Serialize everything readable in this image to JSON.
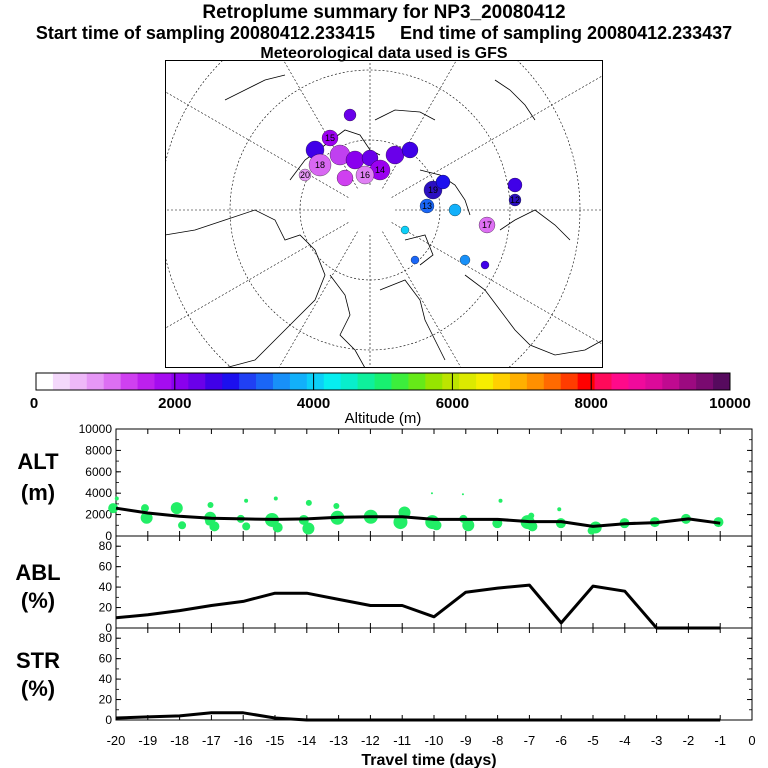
{
  "header": {
    "title": "Retroplume summary for NP3_20080412",
    "start_label": "Start time of sampling 20080412.233415",
    "end_label": "End time of sampling 20080412.233437",
    "met_label": "Meteorological data used is GFS"
  },
  "colorbar": {
    "ticks": [
      "0",
      "2000",
      "4000",
      "6000",
      "8000",
      "10000"
    ],
    "label": "Altitude (m)",
    "colors": [
      "#ffffff",
      "#f4d8fb",
      "#eeb8f8",
      "#e697f6",
      "#dd6ff3",
      "#cf40f0",
      "#bd20ee",
      "#a50cf0",
      "#8a00ee",
      "#6a00ea",
      "#4000e8",
      "#1c10ee",
      "#2040f4",
      "#1a66f6",
      "#1890f8",
      "#12b0fa",
      "#0ccff8",
      "#06eef0",
      "#08eecc",
      "#0ef09c",
      "#18f070",
      "#3cee3c",
      "#66ea18",
      "#96e400",
      "#bce400",
      "#dcea00",
      "#f6ee00",
      "#ffd000",
      "#ffb000",
      "#ff9000",
      "#ff6a00",
      "#ff3c00",
      "#ff0000",
      "#ff0a5a",
      "#ff0a8a",
      "#f00a9c",
      "#dc0a9a",
      "#c00a90",
      "#9c0a80",
      "#7a0a70",
      "#560a5e"
    ]
  },
  "axes": {
    "xlabel": "Travel time (days)",
    "x_ticks": [
      "-20",
      "-19",
      "-18",
      "-17",
      "-16",
      "-15",
      "-14",
      "-13",
      "-12",
      "-11",
      "-10",
      "-9",
      "-8",
      "-7",
      "-6",
      "-5",
      "-4",
      "-3",
      "-2",
      "-1",
      "0"
    ]
  },
  "chart_data": [
    {
      "type": "line",
      "panel_label": "ALT",
      "unit_label": "(m)",
      "ylim": [
        0,
        10000
      ],
      "y_ticks": [
        "0",
        "2000",
        "4000",
        "6000",
        "8000",
        "10000"
      ],
      "x": [
        -20,
        -19,
        -18,
        -17,
        -16,
        -15,
        -14,
        -13,
        -12,
        -11,
        -10,
        -9,
        -8,
        -7,
        -6,
        -5,
        -4,
        -3,
        -2,
        -1
      ],
      "values": [
        2600,
        2150,
        1850,
        1650,
        1600,
        1550,
        1600,
        1750,
        1800,
        1800,
        1550,
        1550,
        1550,
        1350,
        1350,
        900,
        1150,
        1250,
        1600,
        1200
      ],
      "scatter": [
        {
          "x": -20,
          "y": 2600,
          "r": 5
        },
        {
          "x": -20,
          "y": 3500,
          "r": 2
        },
        {
          "x": -19,
          "y": 2600,
          "r": 4
        },
        {
          "x": -19,
          "y": 1700,
          "r": 6
        },
        {
          "x": -18,
          "y": 2600,
          "r": 6
        },
        {
          "x": -18,
          "y": 1000,
          "r": 4
        },
        {
          "x": -17,
          "y": 1700,
          "r": 6
        },
        {
          "x": -17,
          "y": 900,
          "r": 5
        },
        {
          "x": -17,
          "y": 1350,
          "r": 4
        },
        {
          "x": -17,
          "y": 2900,
          "r": 3
        },
        {
          "x": -16,
          "y": 1600,
          "r": 4
        },
        {
          "x": -16,
          "y": 900,
          "r": 4
        },
        {
          "x": -16,
          "y": 3300,
          "r": 2
        },
        {
          "x": -15,
          "y": 1500,
          "r": 7
        },
        {
          "x": -15,
          "y": 800,
          "r": 5
        },
        {
          "x": -15,
          "y": 3500,
          "r": 2
        },
        {
          "x": -14,
          "y": 1500,
          "r": 5
        },
        {
          "x": -14,
          "y": 700,
          "r": 6
        },
        {
          "x": -14,
          "y": 3100,
          "r": 3
        },
        {
          "x": -13,
          "y": 1700,
          "r": 7
        },
        {
          "x": -13,
          "y": 2800,
          "r": 3
        },
        {
          "x": -12,
          "y": 1800,
          "r": 7
        },
        {
          "x": -12,
          "y": 1900,
          "r": 5
        },
        {
          "x": -11,
          "y": 1300,
          "r": 7
        },
        {
          "x": -11,
          "y": 2200,
          "r": 6
        },
        {
          "x": -10,
          "y": 1300,
          "r": 7
        },
        {
          "x": -10,
          "y": 1000,
          "r": 5
        },
        {
          "x": -10,
          "y": 4000,
          "r": 1
        },
        {
          "x": -9,
          "y": 1000,
          "r": 6
        },
        {
          "x": -9,
          "y": 1600,
          "r": 4
        },
        {
          "x": -9,
          "y": 3900,
          "r": 1
        },
        {
          "x": -8,
          "y": 1200,
          "r": 5
        },
        {
          "x": -8,
          "y": 3300,
          "r": 2
        },
        {
          "x": -7,
          "y": 1300,
          "r": 7
        },
        {
          "x": -7,
          "y": 900,
          "r": 5
        },
        {
          "x": -7,
          "y": 1900,
          "r": 3
        },
        {
          "x": -6,
          "y": 1200,
          "r": 5
        },
        {
          "x": -6,
          "y": 2500,
          "r": 2
        },
        {
          "x": -5,
          "y": 800,
          "r": 6
        },
        {
          "x": -5,
          "y": 500,
          "r": 4
        },
        {
          "x": -4,
          "y": 1200,
          "r": 5
        },
        {
          "x": -3,
          "y": 1300,
          "r": 5
        },
        {
          "x": -2,
          "y": 1600,
          "r": 5
        },
        {
          "x": -1,
          "y": 1300,
          "r": 5
        }
      ]
    },
    {
      "type": "line",
      "panel_label": "ABL",
      "unit_label": "(%)",
      "ylim": [
        0,
        90
      ],
      "y_ticks": [
        "0",
        "20",
        "40",
        "60",
        "80"
      ],
      "x": [
        -20,
        -19,
        -18,
        -17,
        -16,
        -15,
        -14,
        -13,
        -12,
        -11,
        -10,
        -9,
        -8,
        -7,
        -6,
        -5,
        -4,
        -3,
        -2,
        -1
      ],
      "values": [
        10,
        13,
        17,
        22,
        26,
        34,
        34,
        28,
        22,
        22,
        11,
        35,
        39,
        42,
        5,
        41,
        36,
        0,
        0,
        0
      ]
    },
    {
      "type": "line",
      "panel_label": "STR",
      "unit_label": "(%)",
      "ylim": [
        0,
        90
      ],
      "y_ticks": [
        "0",
        "20",
        "40",
        "60",
        "80"
      ],
      "x": [
        -20,
        -19,
        -18,
        -17,
        -16,
        -15,
        -14,
        -13,
        -12,
        -11,
        -10,
        -9,
        -8,
        -7,
        -6,
        -5,
        -4,
        -3,
        -2,
        -1
      ],
      "values": [
        2,
        3,
        4,
        7,
        7,
        2,
        0,
        0,
        0,
        0,
        0,
        0,
        0,
        0,
        0,
        0,
        0,
        0,
        0,
        0
      ]
    }
  ],
  "map": {
    "plume_labels": [
      "15",
      "16",
      "17",
      "18",
      "19",
      "12",
      "13",
      "14",
      "20"
    ],
    "plume_colors": [
      "#9b00f0",
      "#8a00ee",
      "#c040f0",
      "#d868f2",
      "#4000e8",
      "#2c10c0",
      "#1a66f6",
      "#6a00ea",
      "#e080f4"
    ]
  }
}
